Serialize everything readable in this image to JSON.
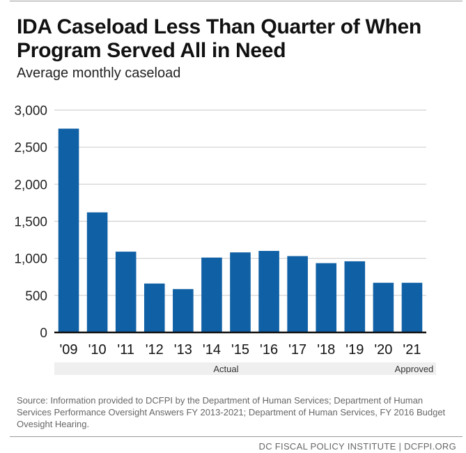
{
  "header": {
    "title": "IDA Caseload Less Than Quarter of When Program Served All in Need",
    "subtitle": "Average monthly caseload"
  },
  "colors": {
    "bar": "#1060a5",
    "grid": "#d0d0d0",
    "axis": "#111111",
    "group_band": "#efefef"
  },
  "chart_data": {
    "type": "bar",
    "title": "IDA Caseload Less Than Quarter of When Program Served All in Need",
    "subtitle": "Average monthly caseload",
    "xlabel": "",
    "ylabel": "",
    "categories": [
      "'09",
      "'10",
      "'11",
      "'12",
      "'13",
      "'14",
      "'15",
      "'16",
      "'17",
      "'18",
      "'19",
      "'20",
      "'21"
    ],
    "values": [
      2750,
      1620,
      1090,
      660,
      585,
      1010,
      1080,
      1100,
      1030,
      935,
      960,
      670,
      670
    ],
    "ylim": [
      0,
      3000
    ],
    "yticks": [
      0,
      500,
      1000,
      1500,
      2000,
      2500,
      3000
    ],
    "ytick_labels": [
      "0",
      "500",
      "1,000",
      "1,500",
      "2,000",
      "2,500",
      "3,000"
    ],
    "grid": true,
    "legend": "none",
    "groups": [
      {
        "label": "Actual",
        "start": 0,
        "end": 11
      },
      {
        "label": "Approved",
        "start": 12,
        "end": 12
      }
    ]
  },
  "footer": {
    "source": "Source: Information provided to DCFPI by the Department of Human Services; Department of Human Services Performance Oversight Answers FY 2013-2021; Department of Human Services, FY 2016 Budget Ovesight Hearing.",
    "credit": "DC FISCAL POLICY INSTITUTE | DCFPI.ORG"
  }
}
